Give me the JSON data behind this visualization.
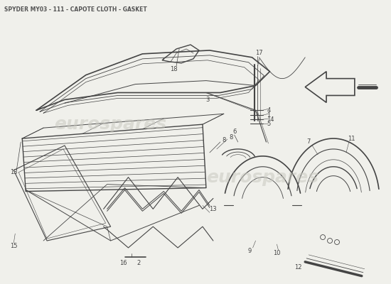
{
  "title": "SPYDER MY03 - 111 - CAPOTE CLOTH - GASKET",
  "title_fontsize": 5.5,
  "title_color": "#555555",
  "bg_color": "#f0f0eb",
  "line_color": "#444444",
  "watermark": "eurospares",
  "watermark_color": "#c8c8c0",
  "watermark_alpha": 0.55,
  "watermark_fontsize": 18
}
